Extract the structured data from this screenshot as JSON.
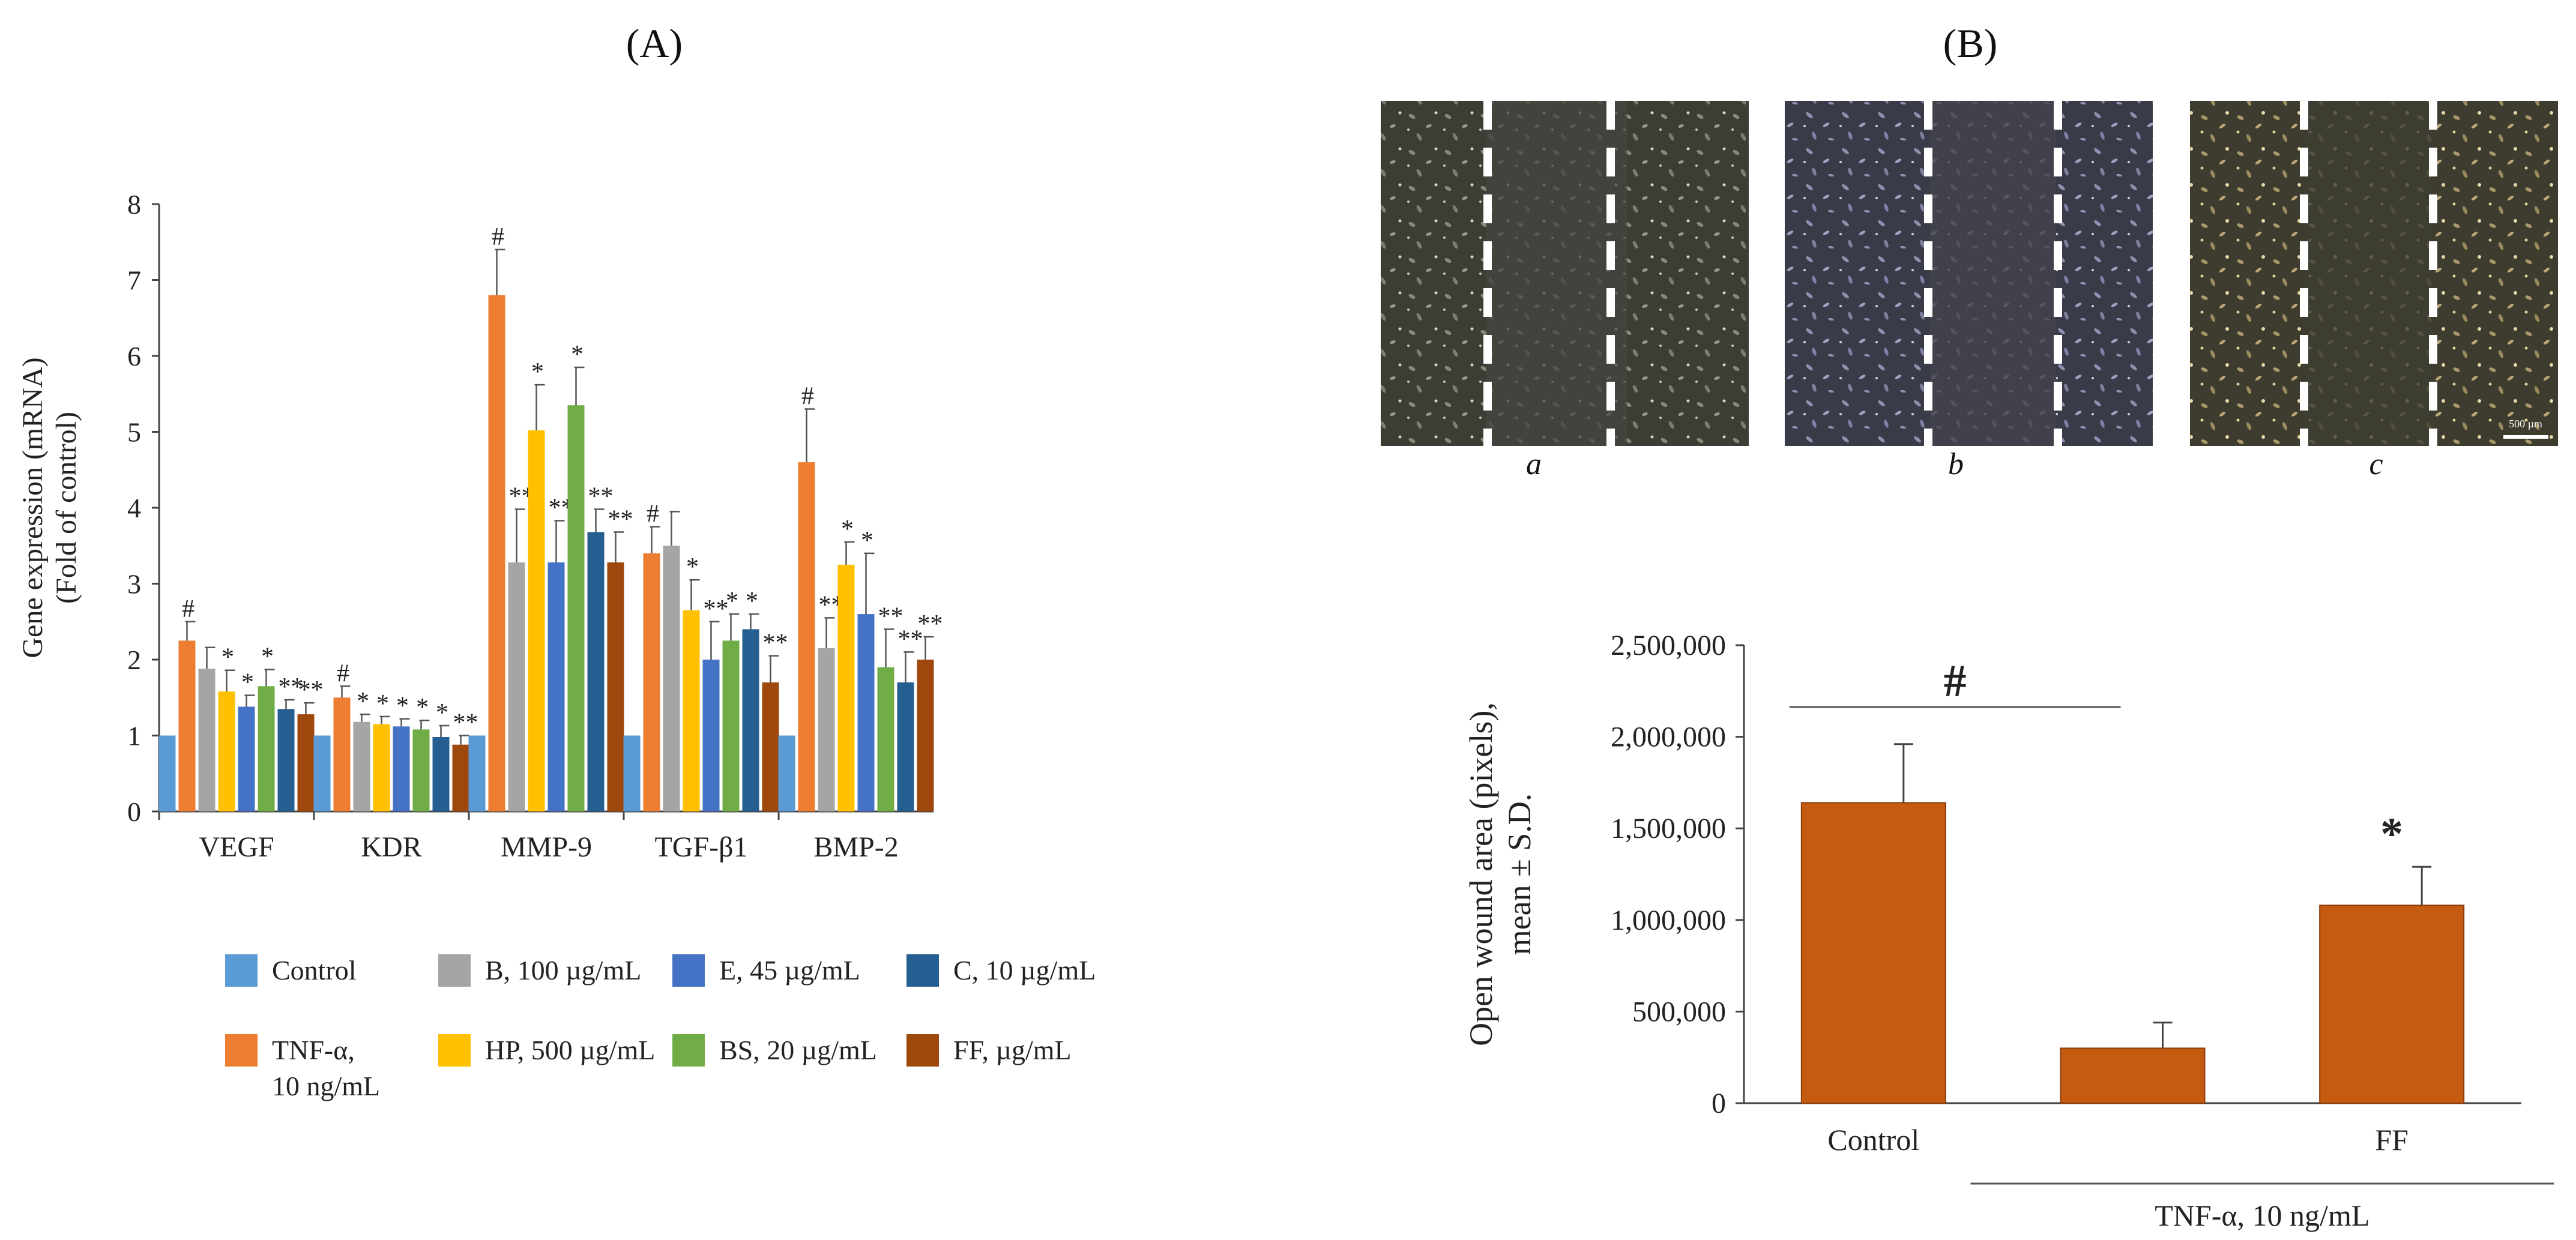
{
  "panel_labels": {
    "a": "(A)",
    "b": "(B)"
  },
  "photo_labels": [
    "a",
    "b",
    "c"
  ],
  "scale_bar_label": "500 µm",
  "chart_data": [
    {
      "id": "gene-expression",
      "type": "bar",
      "title": "",
      "ylabel_lines": [
        "Gene expression (mRNA)",
        "(Fold of control)"
      ],
      "xlabel": "",
      "ylim": [
        0,
        8
      ],
      "yticks": [
        0,
        1,
        2,
        3,
        4,
        5,
        6,
        7,
        8
      ],
      "grid": false,
      "categories": [
        "VEGF",
        "KDR",
        "MMP-9",
        "TGF-β1",
        "BMP-2"
      ],
      "series": [
        {
          "name": "Control",
          "color": "#5B9BD5",
          "values": [
            1,
            1,
            1,
            1,
            1
          ],
          "errors": [
            0,
            0,
            0,
            0,
            0
          ],
          "marks": [
            "",
            "",
            "",
            "",
            ""
          ]
        },
        {
          "name": "TNF-α, 10 ng/mL",
          "color": "#ED7D31",
          "values": [
            2.25,
            1.5,
            6.8,
            3.4,
            4.6
          ],
          "errors": [
            0.25,
            0.15,
            0.6,
            0.35,
            0.7
          ],
          "marks": [
            "#",
            "#",
            "#",
            "#",
            "#"
          ]
        },
        {
          "name": "B, 100 µg/mL",
          "color": "#A5A5A5",
          "values": [
            1.88,
            1.18,
            3.28,
            3.5,
            2.15
          ],
          "errors": [
            0.28,
            0.1,
            0.7,
            0.45,
            0.4
          ],
          "marks": [
            "",
            "*",
            "**",
            "",
            "**"
          ]
        },
        {
          "name": "HP, 500 µg/mL",
          "color": "#FFC000",
          "values": [
            1.58,
            1.15,
            5.02,
            2.65,
            3.25
          ],
          "errors": [
            0.28,
            0.1,
            0.6,
            0.4,
            0.3
          ],
          "marks": [
            "*",
            "*",
            "*",
            "*",
            "*"
          ]
        },
        {
          "name": "E, 45 µg/mL",
          "color": "#4472C4",
          "values": [
            1.38,
            1.12,
            3.28,
            2.0,
            2.6
          ],
          "errors": [
            0.15,
            0.1,
            0.55,
            0.5,
            0.8
          ],
          "marks": [
            "*",
            "*",
            "**",
            "**",
            "*"
          ]
        },
        {
          "name": "BS, 20 µg/mL",
          "color": "#70AD47",
          "values": [
            1.65,
            1.08,
            5.35,
            2.25,
            1.9
          ],
          "errors": [
            0.22,
            0.12,
            0.5,
            0.35,
            0.5
          ],
          "marks": [
            "*",
            "*",
            "*",
            "*",
            "**"
          ]
        },
        {
          "name": "C, 10 µg/mL",
          "color": "#255E91",
          "values": [
            1.35,
            0.98,
            3.68,
            2.4,
            1.7
          ],
          "errors": [
            0.12,
            0.15,
            0.3,
            0.2,
            0.4
          ],
          "marks": [
            "**",
            "*",
            "**",
            "*",
            "**"
          ]
        },
        {
          "name": "FF, µg/mL",
          "color": "#9E480E",
          "values": [
            1.28,
            0.88,
            3.28,
            1.7,
            2.0
          ],
          "errors": [
            0.15,
            0.12,
            0.4,
            0.35,
            0.3
          ],
          "marks": [
            "**",
            "**",
            "**",
            "**",
            "**"
          ]
        }
      ],
      "legend": {
        "placement": "bottom",
        "order": [
          0,
          2,
          4,
          6,
          1,
          3,
          5,
          7
        ],
        "label_lines": [
          [
            "Control"
          ],
          [
            "B, 100 µg/mL"
          ],
          [
            "E, 45 µg/mL"
          ],
          [
            "C, 10 µg/mL"
          ],
          [
            "TNF-α,",
            "10 ng/mL"
          ],
          [
            "HP, 500 µg/mL"
          ],
          [
            "BS, 20 µg/mL"
          ],
          [
            "FF, µg/mL"
          ]
        ]
      }
    },
    {
      "id": "wound-area",
      "type": "bar",
      "title": "",
      "ylabel_lines": [
        "Open wound area (pixels),",
        "mean ± S.D."
      ],
      "xlabel": "",
      "ylim": [
        0,
        2500000
      ],
      "yticks": [
        0,
        500000,
        1000000,
        1500000,
        2000000,
        2500000
      ],
      "ytick_labels": [
        "0",
        "500,000",
        "1,000,000",
        "1,500,000",
        "2,000,000",
        "2,500,000"
      ],
      "grid": false,
      "categories": [
        "Control",
        "",
        "FF"
      ],
      "values": [
        1640000,
        300000,
        1080000
      ],
      "errors": [
        320000,
        140000,
        210000
      ],
      "color": "#C55A11",
      "marks": [
        "",
        "",
        "*"
      ],
      "bracket_mark": "#",
      "group_label": "TNF-α, 10 ng/mL"
    }
  ]
}
